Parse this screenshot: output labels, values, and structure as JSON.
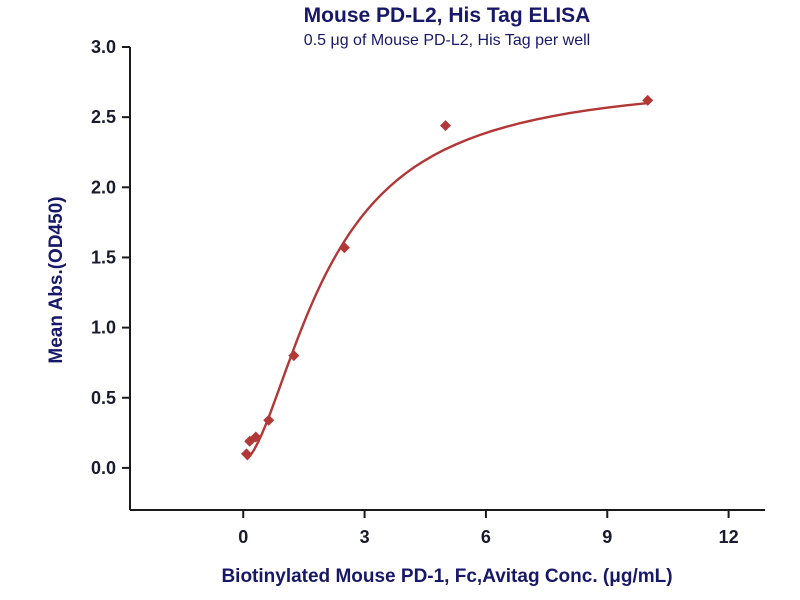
{
  "chart_data": {
    "type": "scatter",
    "title": "Mouse PD-L2, His Tag ELISA",
    "subtitle": "0.5 μg of Mouse PD-L2, His Tag per well",
    "xlabel": "Biotinylated Mouse PD-1, Fc,Avitag Conc. (μg/mL)",
    "ylabel": "Mean Abs.(OD450)",
    "x_ticks": [
      0,
      3,
      6,
      9,
      12
    ],
    "y_ticks": [
      "0.0",
      "0.5",
      "1.0",
      "1.5",
      "2.0",
      "2.5",
      "3.0"
    ],
    "xlim": [
      -2.8,
      12.9
    ],
    "ylim": [
      -0.3,
      3.0
    ],
    "points": [
      {
        "x": 0.08,
        "y": 0.1
      },
      {
        "x": 0.16,
        "y": 0.19
      },
      {
        "x": 0.31,
        "y": 0.22
      },
      {
        "x": 0.63,
        "y": 0.34
      },
      {
        "x": 1.25,
        "y": 0.8
      },
      {
        "x": 2.5,
        "y": 1.57
      },
      {
        "x": 5.0,
        "y": 2.44
      },
      {
        "x": 10.0,
        "y": 2.62
      }
    ],
    "fit_4pl": {
      "bottom": 0.05,
      "top": 2.78,
      "ec50": 2.1,
      "hill": 1.7,
      "x_start": 0.08,
      "x_end": 10
    },
    "marker_color": "#b23737",
    "line_color": "#b23737",
    "axis_color": "#1a1a1a",
    "title_color": "#181868",
    "text_color": "#1a1a2e",
    "grid": false,
    "legend": "none"
  }
}
